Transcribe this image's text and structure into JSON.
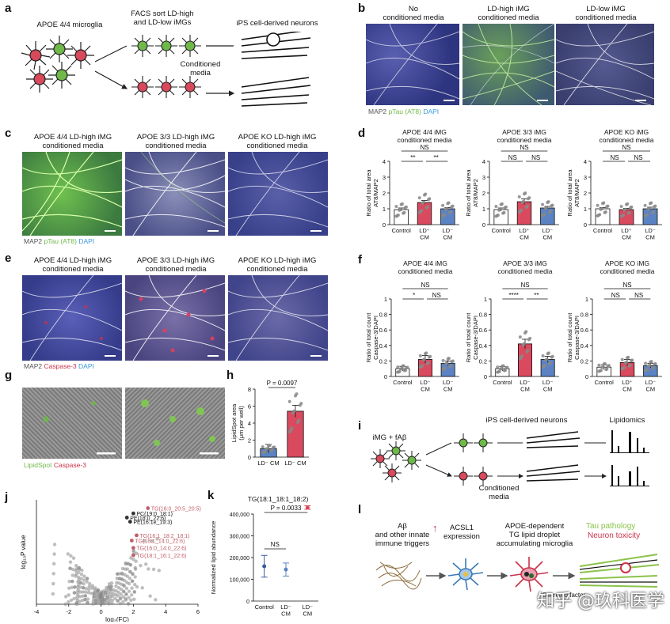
{
  "panel_labels": [
    "a",
    "b",
    "c",
    "d",
    "e",
    "f",
    "g",
    "h",
    "i",
    "j",
    "k",
    "l"
  ],
  "a": {
    "microglia": "APOE 4/4 microglia",
    "facs": "FACS sort LD-high\nand LD-low iMGs",
    "neurons": "iPS cell-derived neurons",
    "conditioned": "Conditioned\nmedia"
  },
  "b": {
    "titles": [
      "No\nconditioned media",
      "LD-high iMG\nconditioned media",
      "LD-low iMG\nconditioned media"
    ],
    "legend": [
      "MAP2",
      "pTau (AT8)",
      "DAPI"
    ]
  },
  "c": {
    "titles": [
      "APOE 4/4 LD-high iMG\nconditioned media",
      "APOE 3/3 LD-high iMG\nconditioned media",
      "APOE KO LD-high iMG\nconditioned media"
    ],
    "legend": [
      "MAP2",
      "pTau (AT8)",
      "DAPI"
    ]
  },
  "e": {
    "titles": [
      "APOE 4/4 LD-high iMG\nconditioned media",
      "APOE 3/3 LD-high iMG\nconditioned media",
      "APOE KO LD-high iMG\nconditioned media"
    ],
    "legend": [
      "MAP2",
      "Caspase-3",
      "DAPI"
    ]
  },
  "g": {
    "legend": [
      "LipidSpot",
      "Caspase-3"
    ]
  },
  "i": {
    "treatment": "iMG + fAβ",
    "neurons": "iPS cell-derived neurons",
    "lipidomics": "Lipidomics",
    "conditioned": "Conditioned\nmedia"
  },
  "l": {
    "trigger": "Aβ\nand other innate\nimmune triggers",
    "acsl1": "ACSL1\nexpression",
    "apoe": "APOE-dependent\nTG lipid droplet\naccumulating microglia",
    "tau": "Tau pathology",
    "tox": "Neuron toxicity",
    "secreted": "Secreted factor"
  },
  "watermark": "知乎 @玖科医学",
  "colors": {
    "control": "#ffffff",
    "ldplus": "#d94a5e",
    "ldminus": "#5b83c4",
    "tg": "#c0606a",
    "green": "#8bc34a",
    "red": "#c8334a",
    "blue": "#3a9ad9"
  },
  "chart_data": [
    {
      "id": "d1",
      "type": "bar",
      "title": "APOE 4/4 iMG\nconditioned media",
      "ylabel": "Ratio of total area\nAT8/MAP2",
      "ylim": [
        0,
        4
      ],
      "yticks": [
        0,
        1,
        2,
        3,
        4
      ],
      "categories": [
        "Control",
        "LD⁺\nCM",
        "LD⁻\nCM"
      ],
      "values": [
        0.95,
        1.4,
        1.0
      ],
      "errors": [
        0.1,
        0.12,
        0.08
      ],
      "sig": [
        {
          "a": 0,
          "b": 2,
          "label": "NS",
          "row": 2
        },
        {
          "a": 0,
          "b": 1,
          "label": "**",
          "row": 1
        },
        {
          "a": 1,
          "b": 2,
          "label": "**",
          "row": 1
        }
      ]
    },
    {
      "id": "d2",
      "type": "bar",
      "title": "APOE 3/3 iMG\nconditioned media",
      "ylabel": "Ratio of total area\nAT8/MAP2",
      "ylim": [
        0,
        4
      ],
      "yticks": [
        0,
        1,
        2,
        3,
        4
      ],
      "categories": [
        "Control",
        "LD⁺\nCM",
        "LD⁻\nCM"
      ],
      "values": [
        0.95,
        1.45,
        1.05
      ],
      "errors": [
        0.1,
        0.18,
        0.1
      ],
      "sig": [
        {
          "a": 0,
          "b": 2,
          "label": "NS",
          "row": 2
        },
        {
          "a": 0,
          "b": 1,
          "label": "NS",
          "row": 1
        },
        {
          "a": 1,
          "b": 2,
          "label": "NS",
          "row": 1
        }
      ]
    },
    {
      "id": "d3",
      "type": "bar",
      "title": "APOE KO iMG\nconditioned media",
      "ylabel": "Ratio of total area\nAT8/MAP2",
      "ylim": [
        0,
        4
      ],
      "yticks": [
        0,
        1,
        2,
        3,
        4
      ],
      "categories": [
        "Control",
        "LD⁺\nCM",
        "LD⁻\nCM"
      ],
      "values": [
        1.0,
        0.95,
        1.0
      ],
      "errors": [
        0.08,
        0.08,
        0.1
      ],
      "sig": [
        {
          "a": 0,
          "b": 2,
          "label": "NS",
          "row": 2
        },
        {
          "a": 0,
          "b": 1,
          "label": "NS",
          "row": 1
        },
        {
          "a": 1,
          "b": 2,
          "label": "NS",
          "row": 1
        }
      ]
    },
    {
      "id": "f1",
      "type": "bar",
      "title": "APOE 4/4 iMG\nconditioned media",
      "ylabel": "Ratio of total count\nCaspase-3/DAPI",
      "ylim": [
        0,
        1.0
      ],
      "yticks": [
        0,
        0.2,
        0.4,
        0.6,
        0.8,
        1.0
      ],
      "categories": [
        "Control",
        "LD⁻\nCM",
        "LD⁻\nCM"
      ],
      "values": [
        0.1,
        0.22,
        0.17
      ],
      "errors": [
        0.03,
        0.05,
        0.03
      ],
      "sig": [
        {
          "a": 0,
          "b": 2,
          "label": "NS",
          "row": 2
        },
        {
          "a": 0,
          "b": 1,
          "label": "*",
          "row": 1
        },
        {
          "a": 1,
          "b": 2,
          "label": "NS",
          "row": 1
        }
      ]
    },
    {
      "id": "f2",
      "type": "bar",
      "title": "APOE 3/3 iMG\nconditioned media",
      "ylabel": "Ratio of total count\nCaspase-3/DAPI",
      "ylim": [
        0,
        1.0
      ],
      "yticks": [
        0,
        0.2,
        0.4,
        0.6,
        0.8,
        1.0
      ],
      "categories": [
        "Control",
        "LD⁻\nCM",
        "LD⁻\nCM"
      ],
      "values": [
        0.1,
        0.42,
        0.22
      ],
      "errors": [
        0.03,
        0.06,
        0.04
      ],
      "sig": [
        {
          "a": 0,
          "b": 2,
          "label": "NS",
          "row": 2
        },
        {
          "a": 0,
          "b": 1,
          "label": "****",
          "row": 1
        },
        {
          "a": 1,
          "b": 2,
          "label": "**",
          "row": 1
        }
      ]
    },
    {
      "id": "f3",
      "type": "bar",
      "title": "APOE KO iMG\nconditioned media",
      "ylabel": "Ratio of total count\nCaspase-3/DAPI",
      "ylim": [
        0,
        1.0
      ],
      "yticks": [
        0,
        0.2,
        0.4,
        0.6,
        0.8,
        1.0
      ],
      "categories": [
        "Control",
        "LD⁺\nCM",
        "LD⁻\nCM"
      ],
      "values": [
        0.12,
        0.18,
        0.14
      ],
      "errors": [
        0.03,
        0.04,
        0.03
      ],
      "sig": [
        {
          "a": 0,
          "b": 2,
          "label": "NS",
          "row": 2
        },
        {
          "a": 0,
          "b": 1,
          "label": "NS",
          "row": 1
        },
        {
          "a": 1,
          "b": 2,
          "label": "NS",
          "row": 1
        }
      ]
    },
    {
      "id": "h",
      "type": "bar",
      "title": "",
      "ylabel": "LipidSpot area\n(μm per well)",
      "ylim": [
        0,
        8
      ],
      "yticks": [
        0,
        2,
        4,
        6,
        8
      ],
      "categories": [
        "LD⁻ CM",
        "LD⁻ CM"
      ],
      "values": [
        1.0,
        5.4
      ],
      "errors": [
        0.5,
        0.7
      ],
      "annotation": "P = 0.0097"
    },
    {
      "id": "j",
      "type": "scatter",
      "xlabel": "log₂(FC)",
      "ylabel": "log₁₀P value",
      "xlim": [
        -4,
        6
      ],
      "xticks": [
        -4,
        -2,
        0,
        2,
        4,
        6
      ],
      "labels": [
        {
          "text": "TG(16:0_20:5_20:5)",
          "x": 2.9,
          "y": 0.92,
          "tg": true
        },
        {
          "text": "PC(19:0_18:1)",
          "x": 2.0,
          "y": 0.87,
          "tg": false
        },
        {
          "text": "PE(18:0_22:6)",
          "x": 1.6,
          "y": 0.83,
          "tg": false
        },
        {
          "text": "PE(16:1e_19:3)",
          "x": 1.8,
          "y": 0.79,
          "tg": false
        },
        {
          "text": "TG(16:1_18:2_18:1)",
          "x": 2.2,
          "y": 0.66,
          "tg": true
        },
        {
          "text": "TG(18:1_14:0_22:6)",
          "x": 1.9,
          "y": 0.61,
          "tg": true
        },
        {
          "text": "TG(16:0_14:0_22:6)",
          "x": 2.0,
          "y": 0.54,
          "tg": true
        },
        {
          "text": "TG(18:1_16:1_22:6)",
          "x": 2.0,
          "y": 0.47,
          "tg": true
        }
      ]
    },
    {
      "id": "k",
      "type": "scatter",
      "title": "TG(18:1_18:1_18:2)",
      "ylabel": "Normalized lipid abundance",
      "ylim": [
        0,
        400000
      ],
      "yticks": [
        "0",
        "100,000",
        "200,000",
        "300,000",
        "400,000"
      ],
      "ytickvals": [
        0,
        100000,
        200000,
        300000,
        400000
      ],
      "categories": [
        "Control",
        "LD⁻\nCM",
        "LD⁻\nCM"
      ],
      "values": [
        160000,
        145000,
        430000
      ],
      "errors": [
        50000,
        30000,
        8000
      ],
      "sig": [
        {
          "a": 0,
          "b": 2,
          "label": "P = 0.0033",
          "row": 2
        },
        {
          "a": 0,
          "b": 1,
          "label": "NS",
          "row": 1
        }
      ]
    }
  ]
}
